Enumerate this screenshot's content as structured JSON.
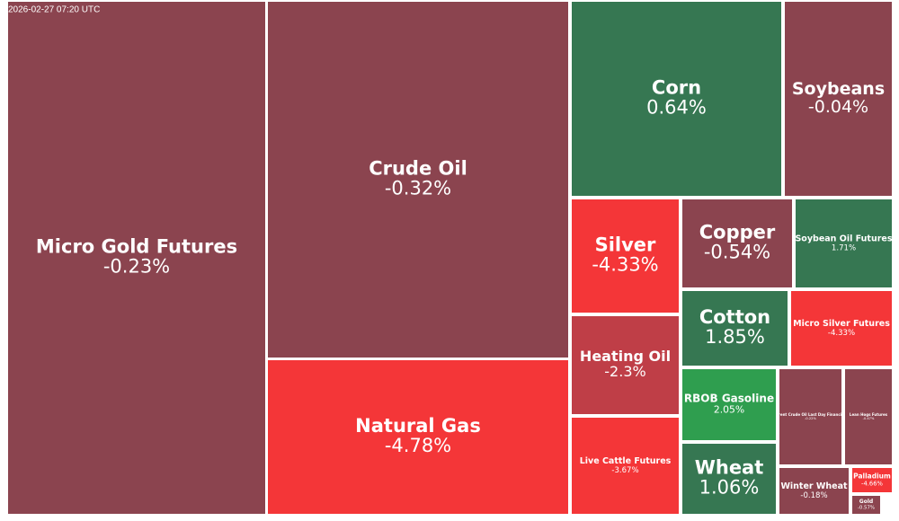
{
  "chart_data": {
    "type": "treemap",
    "subtitle": "2026-02-27 07:20 UTC",
    "categories": [
      "Micro Gold Futures",
      "Crude Oil",
      "Natural Gas",
      "Corn",
      "Soybeans",
      "Silver",
      "Copper",
      "Soybean Oil Futures",
      "Heating Oil",
      "Cotton",
      "Micro Silver Futures",
      "Live Cattle Futures",
      "RBOB Gasoline",
      "Wheat",
      "Brent Crude Oil Last Day Financial",
      "Lean Hogs Futures",
      "Winter Wheat",
      "Palladium",
      "Gold"
    ],
    "values": [
      -0.23,
      -0.32,
      -4.78,
      0.64,
      -0.04,
      -4.33,
      -0.54,
      1.71,
      -2.3,
      1.85,
      -4.33,
      -3.67,
      2.05,
      1.06,
      -0.22,
      -0.47,
      -0.18,
      -4.66,
      -0.57
    ],
    "value_labels": [
      "-0.23%",
      "-0.32%",
      "-4.78%",
      "0.64%",
      "-0.04%",
      "-4.33%",
      "-0.54%",
      "1.71%",
      "-2.3%",
      "1.85%",
      "-4.33%",
      "-3.67%",
      "2.05%",
      "1.06%",
      "-0.22%",
      "-0.47%",
      "-0.18%",
      "-4.66%",
      "-0.57%"
    ],
    "colors": [
      "#8b444f",
      "#8b444f",
      "#f43638",
      "#367752",
      "#8b444f",
      "#f43638",
      "#8b444f",
      "#367752",
      "#bf3e47",
      "#367752",
      "#f43638",
      "#f43638",
      "#2f9e4f",
      "#367752",
      "#8b444f",
      "#8b444f",
      "#8b444f",
      "#f43638",
      "#8b444f"
    ]
  }
}
